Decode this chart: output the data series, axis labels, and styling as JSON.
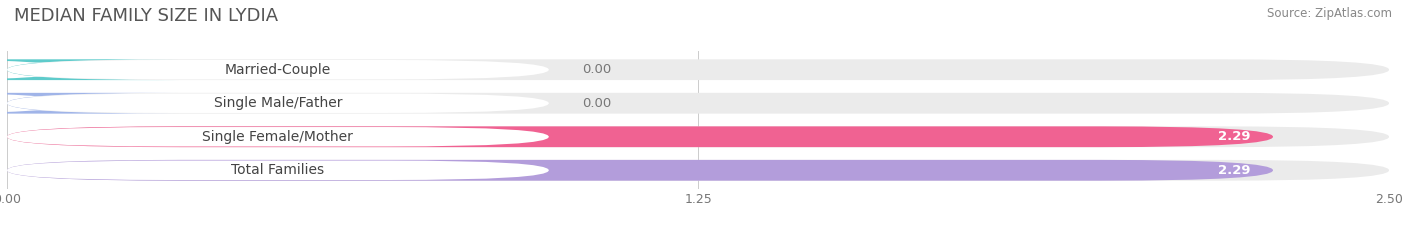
{
  "title": "MEDIAN FAMILY SIZE IN LYDIA",
  "source": "Source: ZipAtlas.com",
  "categories": [
    "Married-Couple",
    "Single Male/Father",
    "Single Female/Mother",
    "Total Families"
  ],
  "values": [
    0.0,
    0.0,
    2.29,
    2.29
  ],
  "bar_colors": [
    "#5ecbcb",
    "#a0b4e8",
    "#f06292",
    "#b39ddb"
  ],
  "background_color": "#ffffff",
  "bar_bg_color": "#ebebeb",
  "xlim_max": 2.5,
  "xticks": [
    0.0,
    1.25,
    2.5
  ],
  "xtick_labels": [
    "0.00",
    "1.25",
    "2.50"
  ],
  "bar_height": 0.62,
  "title_fontsize": 13,
  "label_fontsize": 10,
  "value_fontsize": 9.5
}
